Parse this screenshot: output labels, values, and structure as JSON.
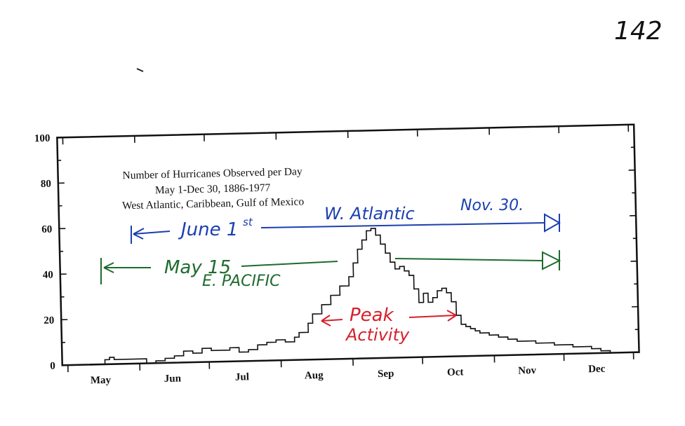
{
  "page": {
    "page_number": "142"
  },
  "chart_data": {
    "type": "line",
    "title_lines": [
      "Number of Hurricanes Observed per Day",
      "May 1-Dec 30, 1886-1977",
      "West Atlantic, Caribbean, Gulf of Mexico"
    ],
    "xlabel": "",
    "ylabel": "",
    "ylim": [
      0,
      100
    ],
    "yticks": [
      0,
      20,
      40,
      60,
      80,
      100
    ],
    "xlim": [
      0,
      244
    ],
    "month_labels": [
      {
        "label": "May",
        "day": 14
      },
      {
        "label": "Jun",
        "day": 45
      },
      {
        "label": "Jul",
        "day": 75
      },
      {
        "label": "Aug",
        "day": 106
      },
      {
        "label": "Sep",
        "day": 137
      },
      {
        "label": "Oct",
        "day": 167
      },
      {
        "label": "Nov",
        "day": 198
      },
      {
        "label": "Dec",
        "day": 228
      }
    ],
    "month_boundaries": [
      0,
      31,
      61,
      92,
      123,
      153,
      184,
      214,
      244
    ],
    "grid": false,
    "series": [
      {
        "x": [
          0,
          14,
          16,
          18,
          20,
          34,
          38,
          42,
          46,
          50,
          54,
          58,
          62,
          66,
          70,
          74,
          78,
          82,
          86,
          90,
          94,
          98,
          100,
          104,
          106,
          110,
          114,
          118,
          122,
          124,
          126,
          128,
          130,
          132,
          134,
          136,
          138,
          140,
          142,
          144,
          146,
          148,
          150,
          152,
          154,
          156,
          158,
          160,
          162,
          164,
          166,
          168,
          170,
          172,
          174,
          176,
          178,
          182,
          186,
          190,
          194,
          198,
          202,
          206,
          210,
          214,
          218,
          222,
          226,
          230,
          234
        ],
        "y": [
          0,
          0,
          2,
          3,
          2,
          0,
          1,
          2,
          3,
          5,
          4,
          6,
          5,
          5,
          6,
          4,
          5,
          7,
          8,
          9,
          8,
          10,
          12,
          16,
          20,
          24,
          28,
          32,
          36,
          42,
          48,
          52,
          56,
          57,
          54,
          50,
          46,
          42,
          39,
          40,
          38,
          36,
          30,
          24,
          28,
          24,
          26,
          29,
          30,
          28,
          24,
          18,
          14,
          13,
          12,
          11,
          10,
          9,
          8,
          7,
          6,
          6,
          5,
          5,
          4,
          4,
          3,
          3,
          2,
          1,
          0
        ]
      }
    ],
    "annotations": {
      "w_atlantic": {
        "text": "W. Atlantic",
        "color": "#1b3fb0"
      },
      "june": {
        "text": "June 1",
        "sup": "st",
        "color": "#1b3fb0"
      },
      "nov30": {
        "text": "Nov. 30.",
        "color": "#1b3fb0"
      },
      "may15": {
        "text": "May 15",
        "color": "#1e6b2e"
      },
      "e_pacific": {
        "text": "E. PACIFIC",
        "color": "#1e6b2e"
      },
      "peak_line1": {
        "text": "Peak",
        "color": "#d6202b"
      },
      "peak_line2": {
        "text": "Activity",
        "color": "#d6202b"
      }
    }
  }
}
